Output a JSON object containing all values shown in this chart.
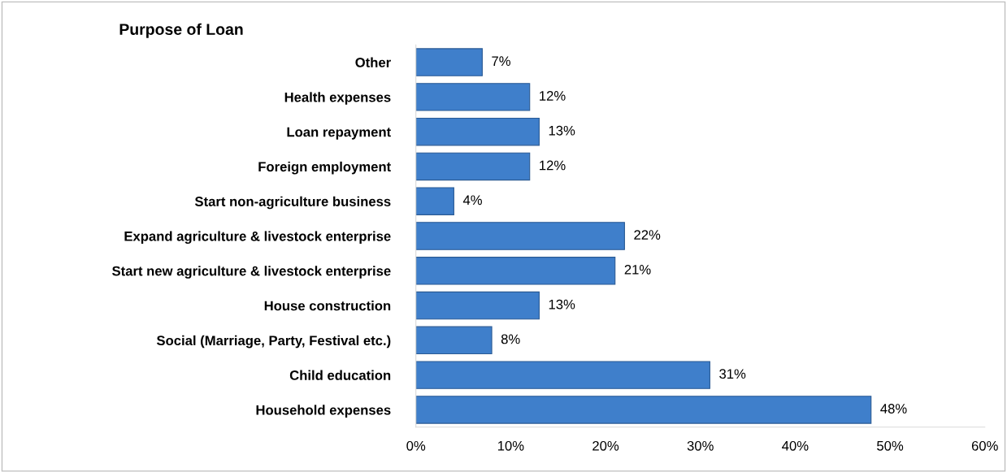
{
  "chart_data": {
    "type": "bar",
    "orientation": "horizontal",
    "title": "Purpose of Loan",
    "categories": [
      "Other",
      "Health expenses",
      "Loan repayment",
      "Foreign employment",
      "Start non-agriculture business",
      "Expand agriculture & livestock enterprise",
      "Start new agriculture & livestock enterprise",
      "House construction",
      "Social (Marriage, Party, Festival etc.)",
      "Child education",
      "Household expenses"
    ],
    "values": [
      7,
      12,
      13,
      12,
      4,
      22,
      21,
      13,
      8,
      31,
      48
    ],
    "value_labels": [
      "7%",
      "12%",
      "13%",
      "12%",
      "4%",
      "22%",
      "21%",
      "13%",
      "8%",
      "31%",
      "48%"
    ],
    "color": "#3f7fcb",
    "xlim": [
      0,
      60
    ],
    "xticks": [
      {
        "value": 0,
        "label": "0%"
      },
      {
        "value": 10,
        "label": "10%"
      },
      {
        "value": 20,
        "label": "20%"
      },
      {
        "value": 30,
        "label": "30%"
      },
      {
        "value": 40,
        "label": "40%"
      },
      {
        "value": 50,
        "label": "50%"
      },
      {
        "value": 60,
        "label": "60%"
      }
    ],
    "grid": false,
    "legend": false
  }
}
